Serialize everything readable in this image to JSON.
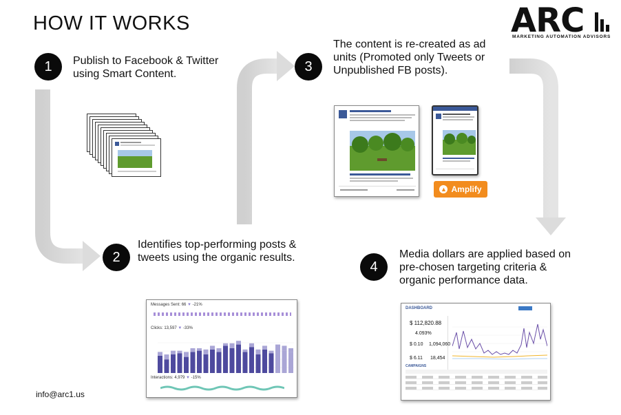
{
  "title": "HOW IT WORKS",
  "logo": {
    "name": "ARC",
    "tagline": "MARKETING AUTOMATION ADVISORS"
  },
  "steps": [
    {
      "number": "1",
      "text_lines": [
        "Publish to Facebook & Twitter",
        "using Smart Content."
      ]
    },
    {
      "number": "2",
      "text_lines": [
        "Identifies top-performing posts &",
        "tweets using the organic results."
      ]
    },
    {
      "number": "3",
      "text_lines": [
        "The content is re-created as ad",
        "units (Promoted only Tweets or",
        "Unpublished FB posts)."
      ]
    },
    {
      "number": "4",
      "text_lines": [
        "Media dollars are applied based on",
        "pre-chosen targeting criteria &",
        "organic performance data."
      ]
    }
  ],
  "amplify_button": {
    "label": "Amplify"
  },
  "analytics": {
    "messages_label": "Messages Sent: 66",
    "messages_change": "-21%",
    "clicks_label": "Clicks: 13,597",
    "clicks_change": "-33%",
    "interactions_label": "Interactions: 4,979",
    "interactions_change": "-15%"
  },
  "dashboard": {
    "header": "DASHBOARD",
    "metrics": [
      {
        "value": "$ 112,820.88"
      },
      {
        "value": "4.093%"
      },
      {
        "value": "$ 0.10"
      },
      {
        "value": "1,094,060"
      },
      {
        "value": "$ 6.11"
      },
      {
        "value": "18,454"
      }
    ],
    "campaigns_label": "CAMPAIGNS"
  },
  "contact": {
    "email": "info@arc1.us"
  },
  "colors": {
    "arrow": "#d9d9d9",
    "badge": "#0a0a0a",
    "amplify": "#f28c1e",
    "bar_dark": "#4e4a9e",
    "bar_light": "#aaa6d6"
  }
}
